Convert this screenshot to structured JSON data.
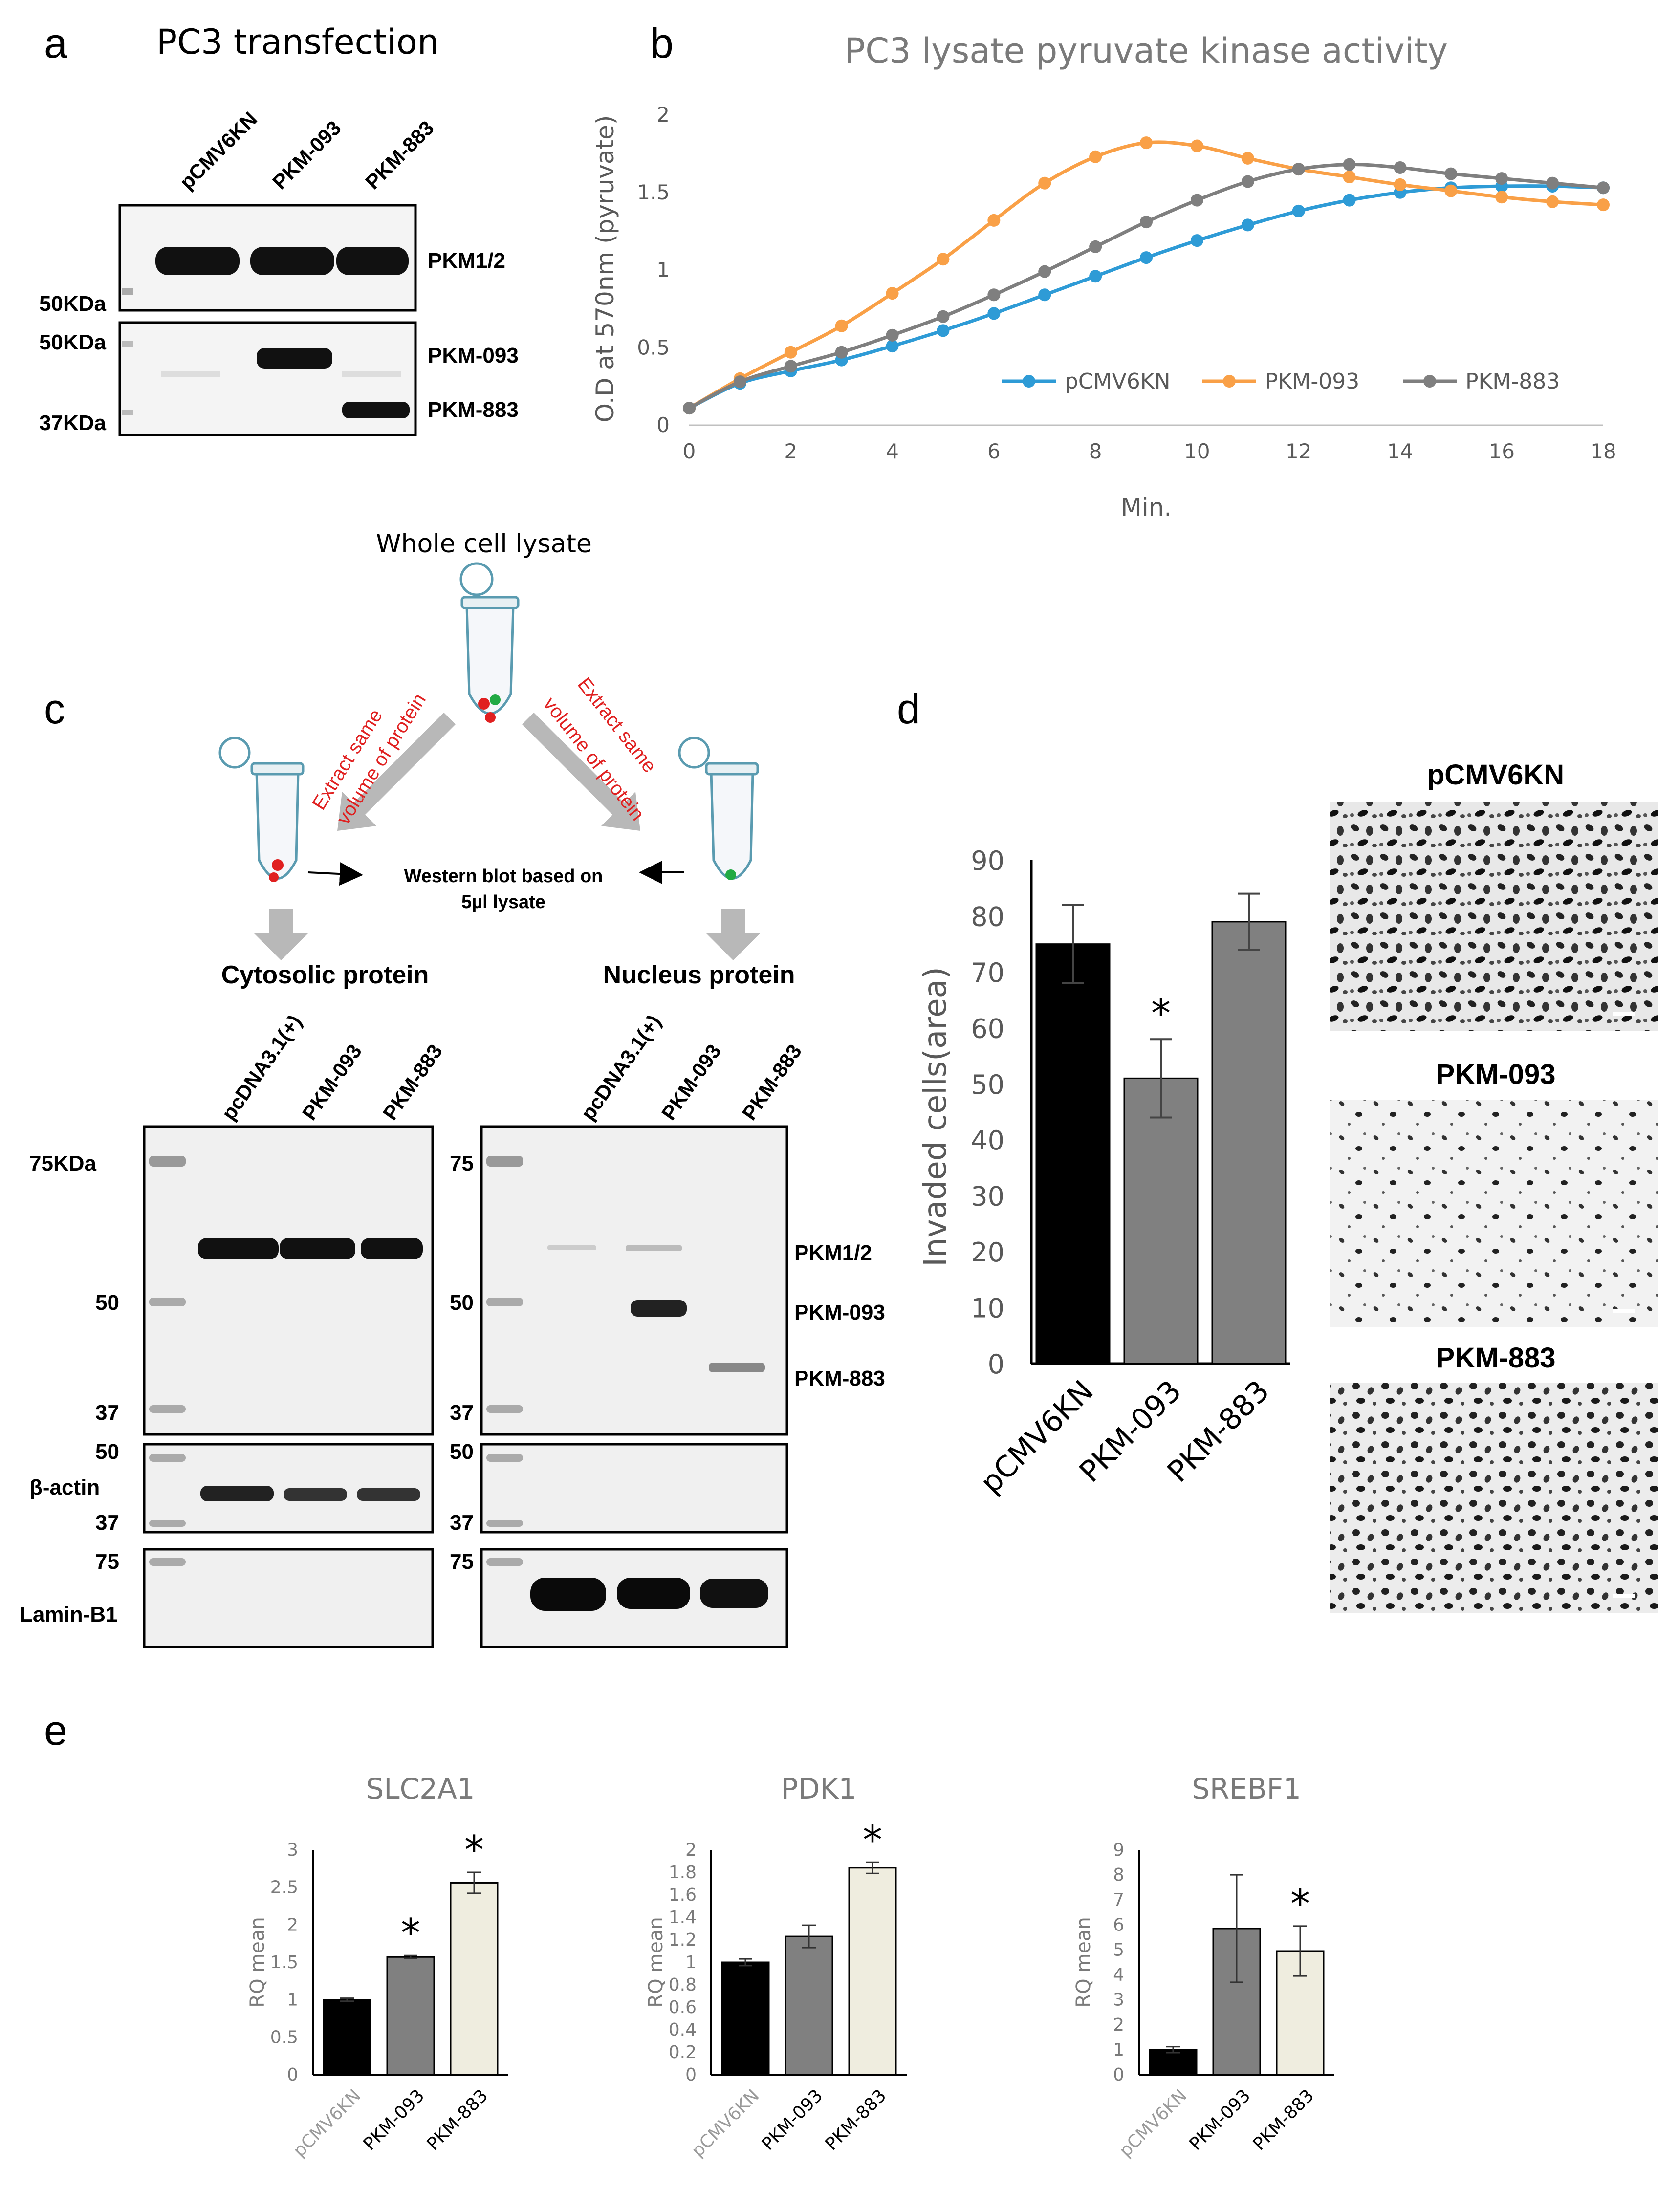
{
  "figure": {
    "panel_letters": [
      "a",
      "b",
      "c",
      "d",
      "e"
    ]
  },
  "panel_a": {
    "title": "PC3 transfection",
    "lanes": [
      "pCMV6KN",
      "PKM-093",
      "PKM-883"
    ],
    "top_blot_label": "PKM1/2",
    "bottom_blot_labels": [
      "PKM-093",
      "PKM-883"
    ],
    "markers": [
      "50KDa",
      "50KDa",
      "37KDa"
    ]
  },
  "panel_c": {
    "top_label": "Whole cell lysate",
    "extract_left_line1": "Extract same",
    "extract_left_line2": "volume of protein",
    "extract_right_line1": "Extract same",
    "extract_right_line2": "volume of protein",
    "western_line1": "Western blot based on",
    "western_line2": "5µl lysate",
    "cytosolic": "Cytosolic protein",
    "nucleus": "Nucleus protein",
    "lanes": [
      "pcDNA3.1(+)",
      "PKM-093",
      "PKM-883"
    ],
    "left_markers": [
      "75KDa",
      "50",
      "37",
      "50",
      "37",
      "75"
    ],
    "right_markers": [
      "75",
      "50",
      "37",
      "50",
      "37",
      "75"
    ],
    "band_labels": [
      "PKM1/2",
      "PKM-093",
      "PKM-883"
    ],
    "beta_actin": "β-actin",
    "lamin": "Lamin-B1"
  },
  "panel_d": {
    "image_titles": [
      "pCMV6KN",
      "PKM-093",
      "PKM-883"
    ]
  },
  "chart_data": [
    {
      "type": "line",
      "title": "PC3 lysate pyruvate kinase activity",
      "xlabel": "Min.",
      "ylabel": "O.D at 570nm (pyruvate)",
      "xlim": [
        0,
        18
      ],
      "ylim": [
        0,
        2
      ],
      "xticks": [
        "0",
        "2",
        "4",
        "6",
        "8",
        "10",
        "12",
        "14",
        "16",
        "18"
      ],
      "yticks": [
        "0",
        "0.5",
        "1",
        "1.5",
        "2"
      ],
      "x": [
        0,
        1,
        2,
        3,
        4,
        5,
        6,
        7,
        8,
        9,
        10,
        11,
        12,
        13,
        14,
        15,
        16,
        17,
        18
      ],
      "legend_position": "bottom-right inside",
      "series": [
        {
          "name": "pCMV6KN",
          "color": "#2e9bd6",
          "values": [
            0.11,
            0.27,
            0.35,
            0.42,
            0.51,
            0.61,
            0.72,
            0.84,
            0.96,
            1.08,
            1.19,
            1.29,
            1.38,
            1.45,
            1.5,
            1.53,
            1.54,
            1.54,
            1.53
          ]
        },
        {
          "name": "PKM-093",
          "color": "#f9a047",
          "values": [
            0.11,
            0.3,
            0.47,
            0.64,
            0.85,
            1.07,
            1.32,
            1.56,
            1.73,
            1.82,
            1.8,
            1.72,
            1.65,
            1.6,
            1.55,
            1.51,
            1.47,
            1.44,
            1.42
          ]
        },
        {
          "name": "PKM-883",
          "color": "#7f7f7f",
          "values": [
            0.11,
            0.28,
            0.38,
            0.47,
            0.58,
            0.7,
            0.84,
            0.99,
            1.15,
            1.31,
            1.45,
            1.57,
            1.65,
            1.68,
            1.66,
            1.62,
            1.59,
            1.56,
            1.53
          ]
        }
      ]
    },
    {
      "type": "bar",
      "xlabel": "",
      "ylabel": "Invaded cells(area)",
      "ylim": [
        0,
        90
      ],
      "yticks": [
        "0",
        "10",
        "20",
        "30",
        "40",
        "50",
        "60",
        "70",
        "80",
        "90"
      ],
      "categories": [
        "pCMV6KN",
        "PKM-093",
        "PKM-883"
      ],
      "values": [
        75,
        51,
        79
      ],
      "errors": [
        7,
        7,
        5
      ],
      "colors": [
        "#000000",
        "#808080",
        "#808080"
      ],
      "annotations": [
        "",
        "*",
        ""
      ]
    },
    {
      "type": "bar",
      "title": "SLC2A1",
      "ylabel": "RQ mean",
      "ylim": [
        0,
        3
      ],
      "yticks": [
        "0",
        "0.5",
        "1",
        "1.5",
        "2",
        "2.5",
        "3"
      ],
      "categories": [
        "pCMV6KN",
        "PKM-093",
        "PKM-883"
      ],
      "values": [
        1.0,
        1.57,
        2.56
      ],
      "errors": [
        0.02,
        0.02,
        0.14
      ],
      "colors": [
        "#000000",
        "#808080",
        "#efeddf"
      ],
      "annotations": [
        "",
        "*",
        "*"
      ]
    },
    {
      "type": "bar",
      "title": "PDK1",
      "ylabel": "RQ mean",
      "ylim": [
        0,
        2
      ],
      "yticks": [
        "0",
        "0.2",
        "0.4",
        "0.6",
        "0.8",
        "1",
        "1.2",
        "1.4",
        "1.6",
        "1.8",
        "2"
      ],
      "categories": [
        "pCMV6KN",
        "PKM-093",
        "PKM-883"
      ],
      "values": [
        1.0,
        1.23,
        1.84
      ],
      "errors": [
        0.03,
        0.1,
        0.05
      ],
      "colors": [
        "#000000",
        "#808080",
        "#efeddf"
      ],
      "annotations": [
        "",
        "",
        "*"
      ]
    },
    {
      "type": "bar",
      "title": "SREBF1",
      "ylabel": "RQ mean",
      "ylim": [
        0,
        9
      ],
      "yticks": [
        "0",
        "1",
        "2",
        "3",
        "4",
        "5",
        "6",
        "7",
        "8",
        "9"
      ],
      "categories": [
        "pCMV6KN",
        "PKM-093",
        "PKM-883"
      ],
      "values": [
        1.0,
        5.85,
        4.95
      ],
      "errors": [
        0.12,
        2.15,
        1.0
      ],
      "colors": [
        "#000000",
        "#808080",
        "#efeddf"
      ],
      "annotations": [
        "",
        "",
        "*"
      ]
    }
  ]
}
